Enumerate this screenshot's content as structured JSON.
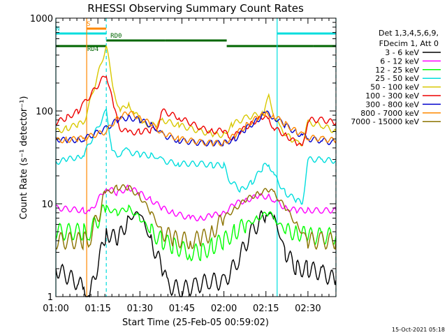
{
  "chart_data": {
    "type": "line",
    "title": "RHESSI Observing Summary Count Rates",
    "xlabel": "Start Time (25-Feb-05 00:59:02)",
    "ylabel": "Count Rate (s⁻¹ detector⁻¹)",
    "yscale": "log",
    "ylim": [
      1,
      1000
    ],
    "xlim_minutes_after_0100": [
      0,
      100
    ],
    "x_ticks": [
      {
        "label": "01:00",
        "min": 0
      },
      {
        "label": "01:15",
        "min": 15
      },
      {
        "label": "01:30",
        "min": 30
      },
      {
        "label": "01:45",
        "min": 45
      },
      {
        "label": "02:00",
        "min": 60
      },
      {
        "label": "02:15",
        "min": 75
      },
      {
        "label": "02:30",
        "min": 90
      }
    ],
    "y_ticks": [
      {
        "label": "1",
        "value": 1
      },
      {
        "label": "10",
        "value": 10
      },
      {
        "label": "100",
        "value": 100
      },
      {
        "label": "1000",
        "value": 1000
      }
    ],
    "legend_header": [
      "Det 1,3,4,5,6,9,",
      "FDecim 1, Att 0"
    ],
    "legend_position": "right",
    "series": [
      {
        "name": "3 - 6 keV",
        "color": "#000000",
        "data": [
          [
            0,
            2
          ],
          [
            8,
            1.4
          ],
          [
            10,
            1.2
          ],
          [
            12,
            1
          ],
          [
            18,
            5
          ],
          [
            22,
            4
          ],
          [
            26,
            7
          ],
          [
            30,
            8
          ],
          [
            34,
            4
          ],
          [
            38,
            2
          ],
          [
            40,
            1.3
          ],
          [
            45,
            1.2
          ],
          [
            50,
            1.3
          ],
          [
            55,
            1.5
          ],
          [
            60,
            1.4
          ],
          [
            65,
            2.5
          ],
          [
            70,
            5
          ],
          [
            75,
            8
          ],
          [
            78,
            7
          ],
          [
            82,
            3
          ],
          [
            86,
            2
          ],
          [
            90,
            2
          ],
          [
            95,
            1.8
          ],
          [
            100,
            1.5
          ]
        ]
      },
      {
        "name": "6 - 12 keV",
        "color": "#ff00ff",
        "data": [
          [
            0,
            9
          ],
          [
            10,
            8.5
          ],
          [
            12,
            8
          ],
          [
            18,
            15
          ],
          [
            22,
            13
          ],
          [
            26,
            15
          ],
          [
            30,
            13
          ],
          [
            34,
            11
          ],
          [
            38,
            9
          ],
          [
            42,
            8
          ],
          [
            48,
            7
          ],
          [
            52,
            7
          ],
          [
            56,
            7.5
          ],
          [
            60,
            8
          ],
          [
            64,
            10
          ],
          [
            68,
            11
          ],
          [
            72,
            12
          ],
          [
            76,
            12
          ],
          [
            78,
            11
          ],
          [
            82,
            9
          ],
          [
            86,
            8.5
          ],
          [
            90,
            8.5
          ],
          [
            95,
            8.5
          ],
          [
            100,
            8.5
          ]
        ]
      },
      {
        "name": "12 - 25 keV",
        "color": "#00ff00",
        "data": [
          [
            0,
            5
          ],
          [
            10,
            5
          ],
          [
            12,
            5
          ],
          [
            18,
            9
          ],
          [
            22,
            8
          ],
          [
            26,
            9
          ],
          [
            30,
            7
          ],
          [
            34,
            5
          ],
          [
            38,
            4
          ],
          [
            42,
            3.5
          ],
          [
            48,
            3
          ],
          [
            52,
            3
          ],
          [
            56,
            3.5
          ],
          [
            60,
            4
          ],
          [
            64,
            5
          ],
          [
            68,
            6
          ],
          [
            72,
            7
          ],
          [
            76,
            8
          ],
          [
            78,
            7
          ],
          [
            82,
            5
          ],
          [
            86,
            5
          ],
          [
            90,
            4.5
          ],
          [
            95,
            4.5
          ],
          [
            100,
            4.5
          ]
        ]
      },
      {
        "name": "25 - 50 keV",
        "color": "#00dddd",
        "data": [
          [
            0,
            28
          ],
          [
            4,
            30
          ],
          [
            8,
            32
          ],
          [
            10,
            34
          ],
          [
            18,
            100
          ],
          [
            20,
            40
          ],
          [
            22,
            30
          ],
          [
            24,
            40
          ],
          [
            26,
            36
          ],
          [
            30,
            34
          ],
          [
            34,
            33
          ],
          [
            36,
            33
          ],
          [
            38,
            29
          ],
          [
            44,
            27
          ],
          [
            52,
            27
          ],
          [
            56,
            26
          ],
          [
            60,
            26
          ],
          [
            62,
            18
          ],
          [
            66,
            14
          ],
          [
            70,
            17
          ],
          [
            74,
            25
          ],
          [
            76,
            27
          ],
          [
            78,
            20
          ],
          [
            82,
            13
          ],
          [
            86,
            11
          ],
          [
            88,
            10
          ],
          [
            90,
            30
          ],
          [
            95,
            30
          ],
          [
            100,
            29
          ]
        ]
      },
      {
        "name": "50 - 100 keV",
        "color": "#d8c800",
        "data": [
          [
            0,
            60
          ],
          [
            4,
            65
          ],
          [
            8,
            72
          ],
          [
            10,
            75
          ],
          [
            18,
            500
          ],
          [
            21,
            150
          ],
          [
            23,
            100
          ],
          [
            26,
            120
          ],
          [
            28,
            95
          ],
          [
            32,
            72
          ],
          [
            36,
            70
          ],
          [
            38,
            80
          ],
          [
            44,
            70
          ],
          [
            52,
            60
          ],
          [
            56,
            56
          ],
          [
            60,
            55
          ],
          [
            63,
            72
          ],
          [
            68,
            85
          ],
          [
            74,
            95
          ],
          [
            76,
            140
          ],
          [
            78,
            90
          ],
          [
            80,
            65
          ],
          [
            84,
            50
          ],
          [
            86,
            45
          ],
          [
            88,
            45
          ],
          [
            90,
            75
          ],
          [
            95,
            70
          ],
          [
            100,
            60
          ]
        ]
      },
      {
        "name": "100 - 300 keV",
        "color": "#ee0000",
        "data": [
          [
            0,
            75
          ],
          [
            4,
            85
          ],
          [
            8,
            100
          ],
          [
            10,
            120
          ],
          [
            18,
            250
          ],
          [
            21,
            100
          ],
          [
            23,
            65
          ],
          [
            26,
            58
          ],
          [
            30,
            60
          ],
          [
            34,
            62
          ],
          [
            36,
            65
          ],
          [
            38,
            100
          ],
          [
            44,
            85
          ],
          [
            52,
            65
          ],
          [
            56,
            60
          ],
          [
            60,
            62
          ],
          [
            62,
            50
          ],
          [
            66,
            60
          ],
          [
            70,
            75
          ],
          [
            74,
            85
          ],
          [
            76,
            80
          ],
          [
            78,
            65
          ],
          [
            82,
            55
          ],
          [
            86,
            45
          ],
          [
            88,
            40
          ],
          [
            90,
            80
          ],
          [
            95,
            80
          ],
          [
            100,
            75
          ]
        ]
      },
      {
        "name": "300 - 800 keV",
        "color": "#0000cc",
        "data": [
          [
            0,
            50
          ],
          [
            4,
            48
          ],
          [
            8,
            49
          ],
          [
            10,
            50
          ],
          [
            18,
            65
          ],
          [
            22,
            80
          ],
          [
            26,
            85
          ],
          [
            30,
            80
          ],
          [
            34,
            70
          ],
          [
            36,
            65
          ],
          [
            38,
            55
          ],
          [
            44,
            48
          ],
          [
            52,
            45
          ],
          [
            56,
            45
          ],
          [
            60,
            45
          ],
          [
            64,
            50
          ],
          [
            68,
            65
          ],
          [
            72,
            80
          ],
          [
            75,
            95
          ],
          [
            78,
            85
          ],
          [
            82,
            70
          ],
          [
            86,
            58
          ],
          [
            88,
            55
          ],
          [
            90,
            50
          ],
          [
            95,
            48
          ],
          [
            100,
            45
          ]
        ]
      },
      {
        "name": "800 - 7000 keV",
        "color": "#ff8800",
        "data": [
          [
            0,
            48
          ],
          [
            4,
            49
          ],
          [
            8,
            50
          ],
          [
            10,
            51
          ],
          [
            18,
            60
          ],
          [
            22,
            85
          ],
          [
            26,
            95
          ],
          [
            30,
            85
          ],
          [
            34,
            72
          ],
          [
            38,
            58
          ],
          [
            44,
            50
          ],
          [
            52,
            46
          ],
          [
            56,
            45
          ],
          [
            60,
            45
          ],
          [
            64,
            55
          ],
          [
            68,
            70
          ],
          [
            72,
            85
          ],
          [
            75,
            92
          ],
          [
            78,
            88
          ],
          [
            82,
            72
          ],
          [
            86,
            60
          ],
          [
            88,
            55
          ],
          [
            90,
            52
          ],
          [
            95,
            50
          ],
          [
            100,
            48
          ]
        ]
      },
      {
        "name": "7000 - 15000 keV",
        "color": "#8b7300",
        "data": [
          [
            0,
            4
          ],
          [
            10,
            4
          ],
          [
            12,
            4.2
          ],
          [
            18,
            13
          ],
          [
            22,
            15
          ],
          [
            26,
            15
          ],
          [
            30,
            12
          ],
          [
            34,
            8
          ],
          [
            38,
            5
          ],
          [
            42,
            4.2
          ],
          [
            48,
            4
          ],
          [
            52,
            4.2
          ],
          [
            56,
            5
          ],
          [
            60,
            7
          ],
          [
            64,
            9
          ],
          [
            68,
            11
          ],
          [
            72,
            13
          ],
          [
            76,
            14
          ],
          [
            78,
            13
          ],
          [
            82,
            9
          ],
          [
            86,
            6
          ],
          [
            90,
            4
          ],
          [
            95,
            4
          ],
          [
            100,
            4
          ]
        ]
      }
    ],
    "vertical_lines": [
      {
        "min": 0,
        "style": "solid",
        "color": "#00dddd"
      },
      {
        "min": 11,
        "style": "solid",
        "color": "#ff8800"
      },
      {
        "min": 18,
        "style": "dashed",
        "color": "#00dddd"
      },
      {
        "min": 79,
        "style": "solid",
        "color": "#00dddd"
      },
      {
        "min": 100,
        "style": "dashed",
        "color": "#00dddd"
      }
    ],
    "state_bars": [
      {
        "label": "S",
        "color": "#ff8800",
        "segments": [
          [
            11,
            18
          ]
        ]
      },
      {
        "label": "N",
        "color": "#00dddd",
        "segments": [
          [
            0,
            18
          ],
          [
            79,
            100
          ]
        ]
      },
      {
        "label": "RD0",
        "color": "#006600",
        "segments": [
          [
            18,
            39
          ],
          [
            39,
            61
          ]
        ]
      },
      {
        "label": "RD4",
        "color": "#006600",
        "segments": [
          [
            0,
            18
          ],
          [
            61,
            92
          ],
          [
            92,
            100
          ]
        ]
      }
    ]
  },
  "footer_timestamp": "15-Oct-2021 05:18"
}
